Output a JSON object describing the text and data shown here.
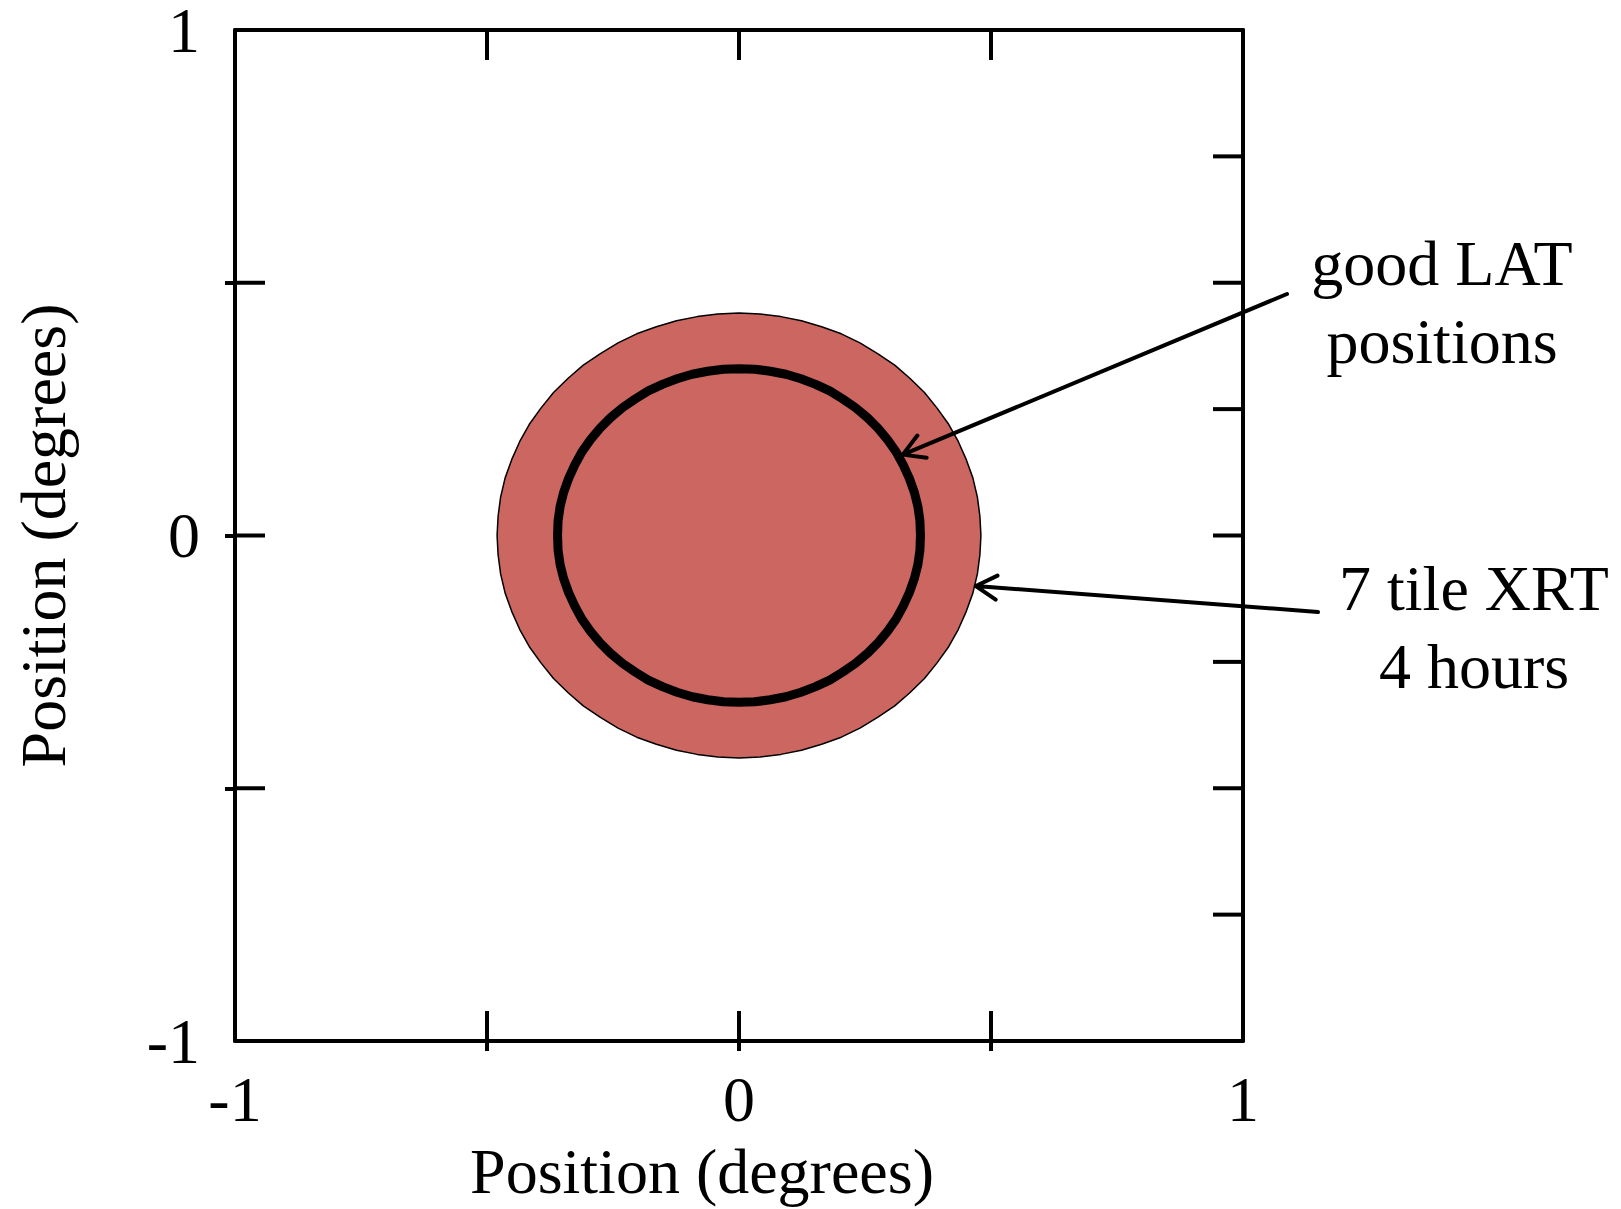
{
  "chart_data": {
    "type": "line",
    "xlabel": "Position (degrees)",
    "ylabel": "Position (degrees)",
    "xlim": [
      -1,
      1
    ],
    "xticks": [
      -1,
      {
        "value": -0.5,
        "label": null
      },
      0,
      {
        "value": 0.5,
        "label": null
      },
      1
    ],
    "ylim": [
      -1,
      1
    ],
    "yticks": [
      -1,
      {
        "value": -0.5,
        "label": null
      },
      0,
      {
        "value": 0.5,
        "label": null
      },
      1
    ],
    "marker": "none",
    "series": [
      {
        "type": "area",
        "color": "#cc6660",
        "x": [
          0.48,
          0.478,
          0.473,
          0.464,
          0.451,
          0.435,
          0.416,
          0.393,
          0.368,
          0.339,
          0.309,
          0.275,
          0.24,
          0.203,
          0.164,
          0.124,
          0.083,
          0.042,
          0,
          -0.042,
          -0.083,
          -0.124,
          -0.164,
          -0.203,
          -0.24,
          -0.275,
          -0.309,
          -0.339,
          -0.368,
          -0.393,
          -0.416,
          -0.435,
          -0.451,
          -0.464,
          -0.473,
          -0.478,
          -0.48,
          -0.478,
          -0.473,
          -0.464,
          -0.451,
          -0.435,
          -0.416,
          -0.393,
          -0.368,
          -0.339,
          -0.309,
          -0.275,
          -0.24,
          -0.203,
          -0.164,
          -0.124,
          -0.083,
          -0.042,
          0,
          0.042,
          0.083,
          0.124,
          0.164,
          0.203,
          0.24,
          0.275,
          0.309,
          0.339,
          0.368,
          0.393,
          0.416,
          0.435,
          0.451,
          0.464,
          0.473,
          0.478,
          0.48
        ],
        "values": [
          0,
          0.038,
          0.076,
          0.114,
          0.15,
          0.186,
          0.22,
          0.252,
          0.283,
          0.311,
          0.337,
          0.36,
          0.381,
          0.399,
          0.413,
          0.425,
          0.433,
          0.438,
          0.44,
          0.438,
          0.433,
          0.425,
          0.413,
          0.399,
          0.381,
          0.36,
          0.337,
          0.311,
          0.283,
          0.252,
          0.22,
          0.186,
          0.15,
          0.114,
          0.076,
          0.038,
          0,
          -0.038,
          -0.076,
          -0.114,
          -0.15,
          -0.186,
          -0.22,
          -0.252,
          -0.283,
          -0.311,
          -0.337,
          -0.36,
          -0.381,
          -0.399,
          -0.413,
          -0.425,
          -0.433,
          -0.438,
          -0.44,
          -0.438,
          -0.433,
          -0.425,
          -0.413,
          -0.399,
          -0.381,
          -0.36,
          -0.337,
          -0.311,
          -0.283,
          -0.252,
          -0.22,
          -0.186,
          -0.15,
          -0.114,
          -0.076,
          -0.038,
          0
        ]
      },
      {
        "color": "#000000",
        "x": [
          0.36,
          0.359,
          0.355,
          0.348,
          0.338,
          0.326,
          0.312,
          0.295,
          0.276,
          0.255,
          0.231,
          0.206,
          0.18,
          0.152,
          0.123,
          0.093,
          0.062,
          0.031,
          0,
          -0.031,
          -0.062,
          -0.093,
          -0.123,
          -0.152,
          -0.18,
          -0.206,
          -0.231,
          -0.255,
          -0.276,
          -0.295,
          -0.312,
          -0.326,
          -0.338,
          -0.348,
          -0.355,
          -0.359,
          -0.36,
          -0.359,
          -0.355,
          -0.348,
          -0.338,
          -0.326,
          -0.312,
          -0.295,
          -0.276,
          -0.255,
          -0.231,
          -0.206,
          -0.18,
          -0.152,
          -0.123,
          -0.093,
          -0.062,
          -0.031,
          0,
          0.031,
          0.062,
          0.093,
          0.123,
          0.152,
          0.18,
          0.206,
          0.231,
          0.255,
          0.276,
          0.295,
          0.312,
          0.326,
          0.338,
          0.348,
          0.355,
          0.359,
          0.36,
          0.359,
          0.355
        ],
        "values": [
          0,
          0.029,
          0.057,
          0.085,
          0.113,
          0.139,
          0.165,
          0.189,
          0.212,
          0.233,
          0.253,
          0.27,
          0.286,
          0.299,
          0.31,
          0.319,
          0.325,
          0.329,
          0.33,
          0.329,
          0.325,
          0.319,
          0.31,
          0.299,
          0.286,
          0.27,
          0.253,
          0.233,
          0.212,
          0.189,
          0.165,
          0.139,
          0.113,
          0.085,
          0.057,
          0.029,
          0,
          -0.029,
          -0.057,
          -0.085,
          -0.113,
          -0.139,
          -0.165,
          -0.189,
          -0.212,
          -0.233,
          -0.253,
          -0.27,
          -0.286,
          -0.299,
          -0.31,
          -0.319,
          -0.325,
          -0.329,
          -0.33,
          -0.329,
          -0.325,
          -0.319,
          -0.31,
          -0.299,
          -0.286,
          -0.27,
          -0.253,
          -0.233,
          -0.212,
          -0.189,
          -0.165,
          -0.139,
          -0.113,
          -0.085,
          -0.057,
          -0.029,
          0,
          0.029,
          0.057
        ]
      }
    ],
    "annotations": [
      {
        "text": "good LAT\npositions",
        "x": 0.325,
        "y": 0.16
      },
      {
        "text": "7 tile XRT\n4 hours",
        "x": 0.47,
        "y": -0.1
      }
    ]
  }
}
